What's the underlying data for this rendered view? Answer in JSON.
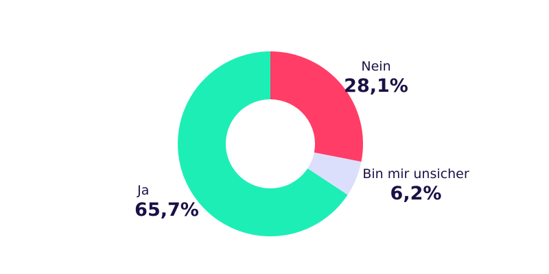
{
  "chart_data": {
    "type": "pie",
    "variant": "donut",
    "start": "top",
    "direction": "clockwise",
    "slices": [
      {
        "label": "Nein",
        "value": 28.1,
        "display": "28,1%",
        "color": "#ff3d66"
      },
      {
        "label": "Bin mir unsicher",
        "value": 6.2,
        "display": "6,2%",
        "color": "#dcdffb"
      },
      {
        "label": "Ja",
        "value": 65.7,
        "display": "65,7%",
        "color": "#1deeb6"
      }
    ],
    "text_color": "#1a1045"
  }
}
